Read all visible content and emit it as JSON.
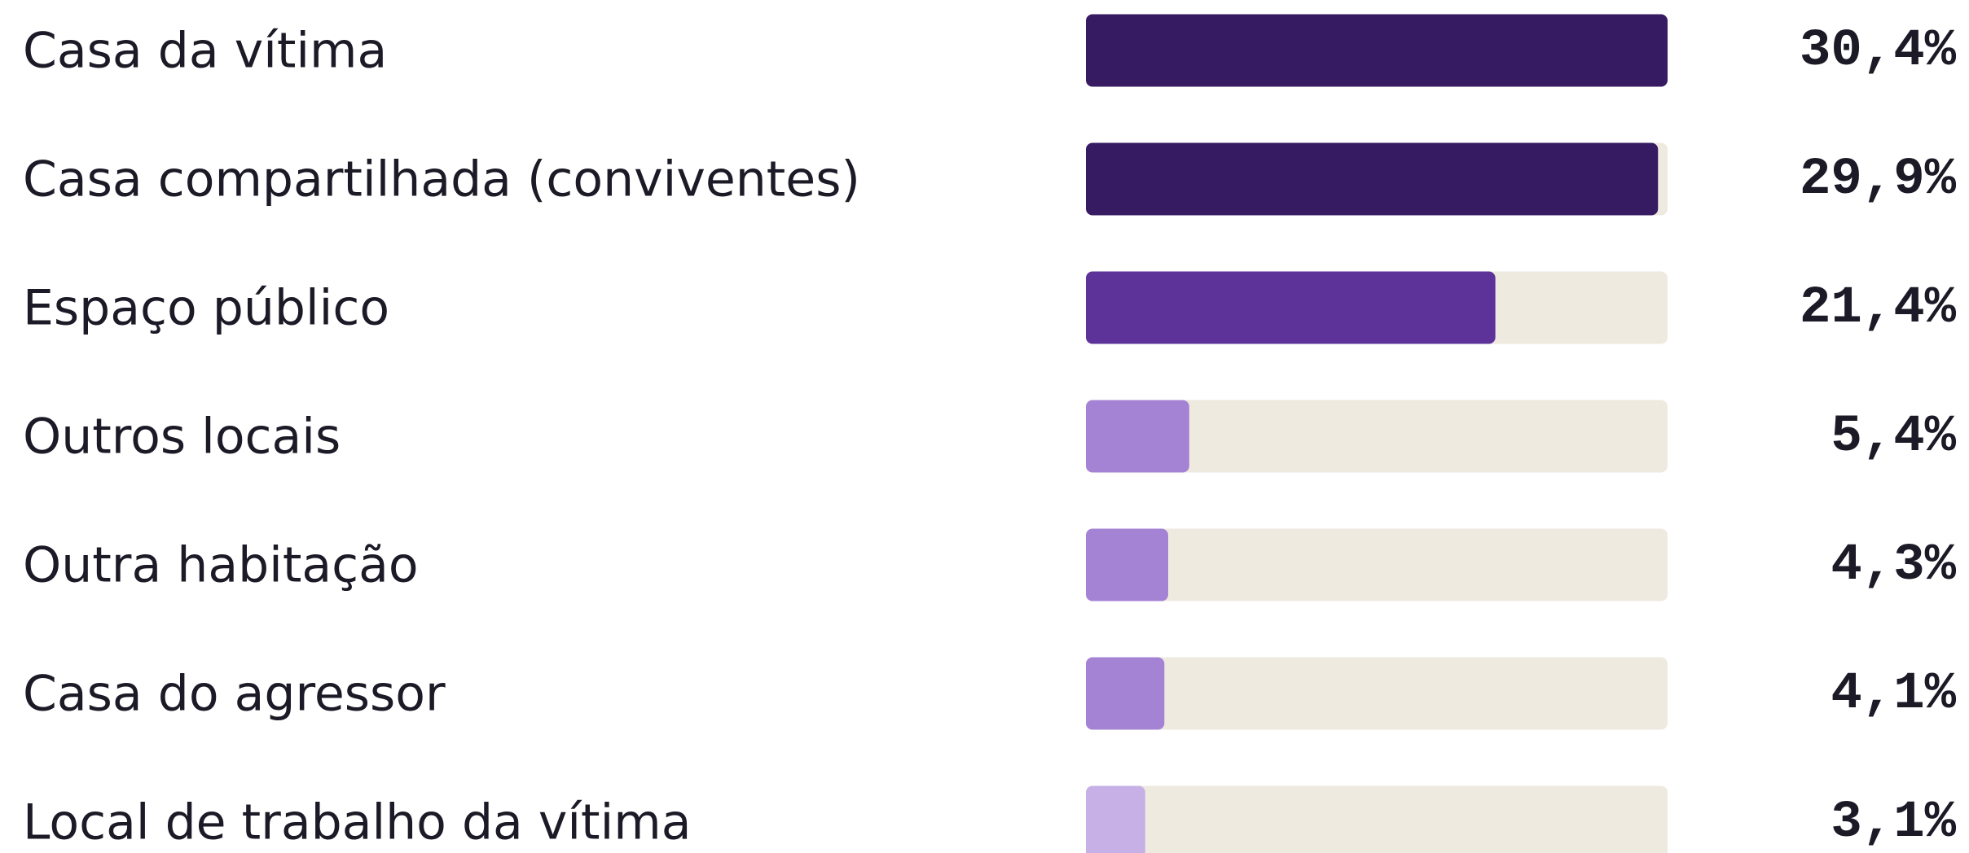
{
  "chart_data": {
    "type": "bar",
    "orientation": "horizontal",
    "categories": [
      "Casa da vítima",
      "Casa compartilhada (conviventes)",
      "Espaço público",
      "Outros locais",
      "Outra habitação",
      "Casa do agressor",
      "Local de trabalho da vítima"
    ],
    "values": [
      30.4,
      29.9,
      21.4,
      5.4,
      4.3,
      4.1,
      3.1
    ],
    "value_labels": [
      "30,4%",
      "29,9%",
      "21,4%",
      "5,4%",
      "4,3%",
      "4,1%",
      "3,1%"
    ],
    "colors": [
      "#361a62",
      "#361a62",
      "#5e3399",
      "#a583d4",
      "#a583d4",
      "#a583d4",
      "#c7b0e6"
    ],
    "track_color": "#eeeae0",
    "xlim": [
      0,
      30.4
    ]
  }
}
